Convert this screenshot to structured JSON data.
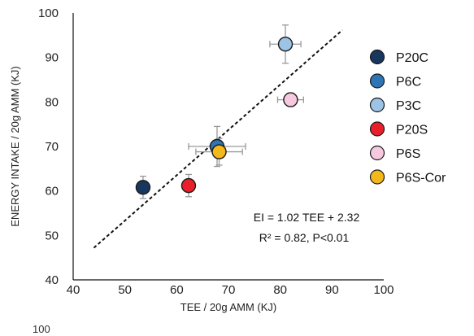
{
  "chart_data": {
    "type": "scatter",
    "xlabel": "TEE / 20g AMM (KJ)",
    "ylabel": "ENERGY INTAKE / 20g AMM (KJ)",
    "xlim": [
      40,
      100
    ],
    "ylim": [
      40,
      100
    ],
    "xticks": [
      40,
      50,
      60,
      70,
      80,
      90,
      100
    ],
    "yticks": [
      40,
      50,
      60,
      70,
      80,
      90,
      100
    ],
    "grid": false,
    "legend_position": "right",
    "series": [
      {
        "name": "P20C",
        "color": "#17375e",
        "x": 53.5,
        "y": 60.8,
        "xerr": 0.8,
        "yerr": 2.5
      },
      {
        "name": "P6C",
        "color": "#2e75b6",
        "x": 67.8,
        "y": 70.0,
        "xerr": 5.5,
        "yerr": 4.5
      },
      {
        "name": "P3C",
        "color": "#9dc3e6",
        "x": 81.0,
        "y": 93.0,
        "xerr": 3.0,
        "yerr": 4.3
      },
      {
        "name": "P20S",
        "color": "#e8202a",
        "x": 62.3,
        "y": 61.2,
        "xerr": 1.0,
        "yerr": 2.5
      },
      {
        "name": "P6S",
        "color": "#f6c9e0",
        "x": 82.0,
        "y": 80.5,
        "xerr": 2.5,
        "yerr": 1.5
      },
      {
        "name": "P6S-Cor",
        "color": "#f2b81c",
        "x": 68.2,
        "y": 68.8,
        "xerr": 4.5,
        "yerr": 3.0
      }
    ],
    "fit_line": {
      "slope": 1.02,
      "intercept": 2.32,
      "x_range": [
        44,
        92
      ],
      "style": "dashed"
    },
    "annotations": [
      "EI = 1.02 TEE + 2.32",
      "R² = 0.82, P<0.01"
    ]
  },
  "fragment": {
    "value": "100"
  }
}
